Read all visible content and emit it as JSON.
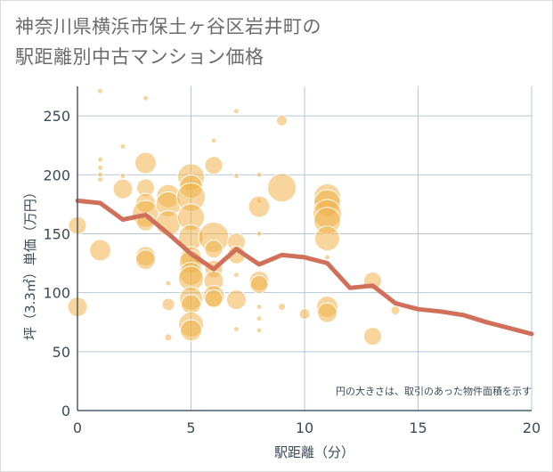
{
  "title_lines": [
    "神奈川県横浜市保土ヶ谷区岩井町の",
    "駅距離別中古マンション価格"
  ],
  "chart_data": {
    "type": "scatter",
    "xlabel": "駅距離（分）",
    "ylabel": "坪（3.3㎡）単価（万円）",
    "note": "円の大きさは、取引のあった物件面積を示す",
    "xlim": [
      0,
      20
    ],
    "ylim": [
      0,
      275
    ],
    "xticks": [
      0,
      5,
      10,
      15,
      20
    ],
    "yticks": [
      0,
      50,
      100,
      150,
      200,
      250
    ],
    "grid": true,
    "colors": {
      "bubble": "#f1b24a",
      "line": "#d0705a",
      "grid": "#b7c6d6",
      "axis": "#4e5b6b",
      "text": "#3f4a57"
    },
    "bubbles": [
      {
        "x": 0,
        "y": 157,
        "size": 10
      },
      {
        "x": 0,
        "y": 88,
        "size": 11
      },
      {
        "x": 1,
        "y": 271,
        "size": 3
      },
      {
        "x": 1,
        "y": 213,
        "size": 3
      },
      {
        "x": 1,
        "y": 206,
        "size": 3
      },
      {
        "x": 1,
        "y": 200,
        "size": 3
      },
      {
        "x": 1,
        "y": 196,
        "size": 3
      },
      {
        "x": 1,
        "y": 136,
        "size": 12
      },
      {
        "x": 2,
        "y": 224,
        "size": 3
      },
      {
        "x": 2,
        "y": 199,
        "size": 3
      },
      {
        "x": 2,
        "y": 188,
        "size": 11
      },
      {
        "x": 2,
        "y": 162,
        "size": 3
      },
      {
        "x": 3,
        "y": 265,
        "size": 3
      },
      {
        "x": 3,
        "y": 210,
        "size": 12
      },
      {
        "x": 3,
        "y": 189,
        "size": 10
      },
      {
        "x": 3,
        "y": 176,
        "size": 11
      },
      {
        "x": 3,
        "y": 167,
        "size": 15
      },
      {
        "x": 3,
        "y": 160,
        "size": 10
      },
      {
        "x": 3,
        "y": 131,
        "size": 11
      },
      {
        "x": 3,
        "y": 128,
        "size": 11
      },
      {
        "x": 4,
        "y": 182,
        "size": 13
      },
      {
        "x": 4,
        "y": 175,
        "size": 14
      },
      {
        "x": 4,
        "y": 159,
        "size": 14
      },
      {
        "x": 4,
        "y": 108,
        "size": 3
      },
      {
        "x": 4,
        "y": 90,
        "size": 7
      },
      {
        "x": 4,
        "y": 62,
        "size": 4
      },
      {
        "x": 5,
        "y": 198,
        "size": 15
      },
      {
        "x": 5,
        "y": 190,
        "size": 13
      },
      {
        "x": 5,
        "y": 181,
        "size": 16
      },
      {
        "x": 5,
        "y": 164,
        "size": 15
      },
      {
        "x": 5,
        "y": 147,
        "size": 14
      },
      {
        "x": 5,
        "y": 130,
        "size": 12
      },
      {
        "x": 5,
        "y": 126,
        "size": 13
      },
      {
        "x": 5,
        "y": 116,
        "size": 13
      },
      {
        "x": 5,
        "y": 112,
        "size": 14
      },
      {
        "x": 5,
        "y": 95,
        "size": 13
      },
      {
        "x": 5,
        "y": 90,
        "size": 11
      },
      {
        "x": 5,
        "y": 73,
        "size": 14
      },
      {
        "x": 5,
        "y": 68,
        "size": 12
      },
      {
        "x": 6,
        "y": 229,
        "size": 3
      },
      {
        "x": 6,
        "y": 208,
        "size": 10
      },
      {
        "x": 6,
        "y": 147,
        "size": 17
      },
      {
        "x": 6,
        "y": 137,
        "size": 10
      },
      {
        "x": 6,
        "y": 120,
        "size": 10
      },
      {
        "x": 6,
        "y": 110,
        "size": 11
      },
      {
        "x": 6,
        "y": 97,
        "size": 12
      },
      {
        "x": 6,
        "y": 95,
        "size": 10
      },
      {
        "x": 7,
        "y": 254,
        "size": 3
      },
      {
        "x": 7,
        "y": 199,
        "size": 3
      },
      {
        "x": 7,
        "y": 143,
        "size": 10
      },
      {
        "x": 7,
        "y": 132,
        "size": 10
      },
      {
        "x": 7,
        "y": 115,
        "size": 3
      },
      {
        "x": 7,
        "y": 94,
        "size": 11
      },
      {
        "x": 7,
        "y": 69,
        "size": 3
      },
      {
        "x": 8,
        "y": 200,
        "size": 3
      },
      {
        "x": 8,
        "y": 178,
        "size": 3
      },
      {
        "x": 8,
        "y": 173,
        "size": 12
      },
      {
        "x": 8,
        "y": 150,
        "size": 3
      },
      {
        "x": 8,
        "y": 110,
        "size": 11
      },
      {
        "x": 8,
        "y": 107,
        "size": 10
      },
      {
        "x": 8,
        "y": 88,
        "size": 3
      },
      {
        "x": 8,
        "y": 78,
        "size": 3
      },
      {
        "x": 8,
        "y": 68,
        "size": 3
      },
      {
        "x": 9,
        "y": 246,
        "size": 6
      },
      {
        "x": 9,
        "y": 189,
        "size": 16
      },
      {
        "x": 9,
        "y": 88,
        "size": 4
      },
      {
        "x": 10,
        "y": 82,
        "size": 6
      },
      {
        "x": 11,
        "y": 181,
        "size": 15
      },
      {
        "x": 11,
        "y": 176,
        "size": 15
      },
      {
        "x": 11,
        "y": 167,
        "size": 16
      },
      {
        "x": 11,
        "y": 161,
        "size": 15
      },
      {
        "x": 11,
        "y": 146,
        "size": 14
      },
      {
        "x": 11,
        "y": 130,
        "size": 3
      },
      {
        "x": 11,
        "y": 88,
        "size": 12
      },
      {
        "x": 11,
        "y": 83,
        "size": 11
      },
      {
        "x": 13,
        "y": 110,
        "size": 10
      },
      {
        "x": 13,
        "y": 63,
        "size": 10
      },
      {
        "x": 14,
        "y": 85,
        "size": 5
      }
    ],
    "series": [
      {
        "x": [
          0,
          1,
          2,
          3,
          4,
          5,
          6,
          7,
          8,
          9,
          10,
          11,
          12,
          13,
          14,
          15,
          16,
          17,
          18,
          19,
          20
        ],
        "values": [
          178,
          176,
          162,
          166,
          150,
          133,
          120,
          137,
          124,
          132,
          130,
          125,
          104,
          106,
          91,
          86,
          84,
          81,
          75,
          70,
          65
        ]
      }
    ]
  }
}
